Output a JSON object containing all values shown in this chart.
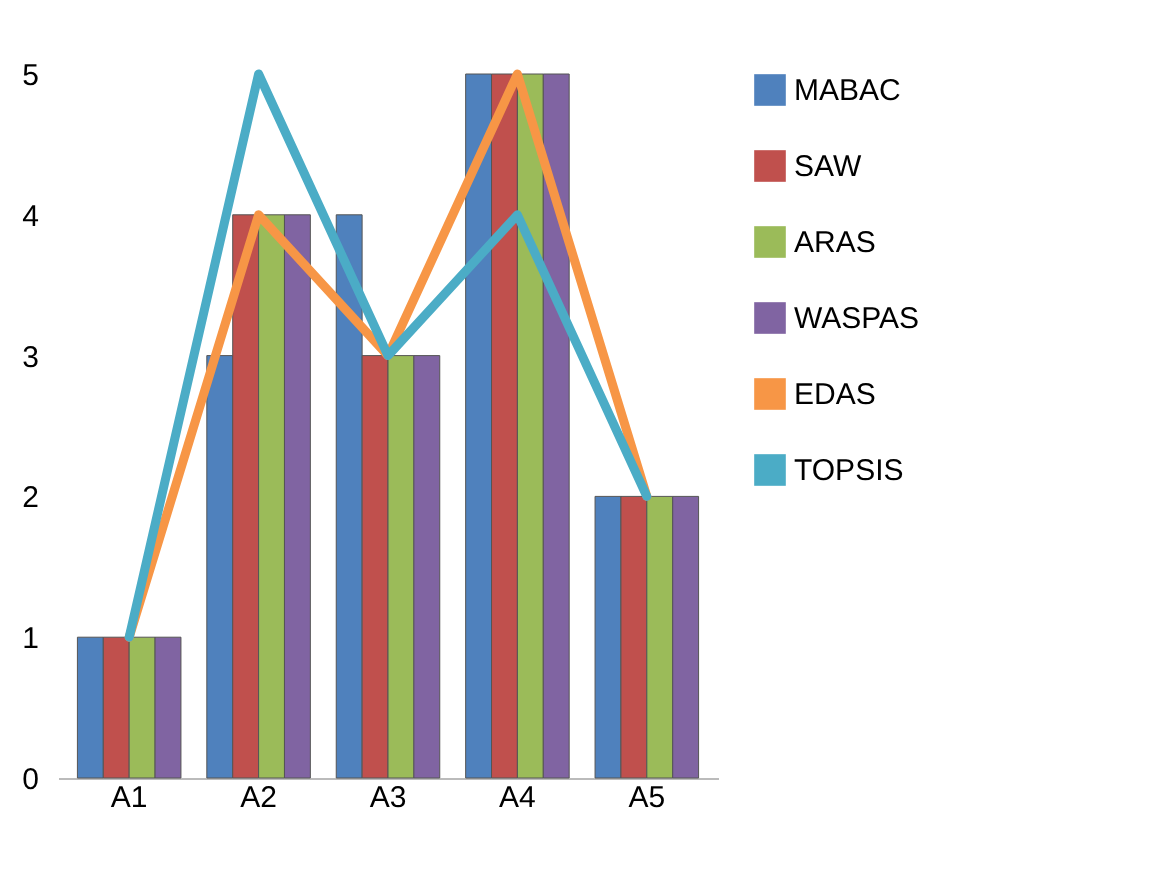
{
  "chart_data": {
    "type": "bar",
    "categories": [
      "A1",
      "A2",
      "A3",
      "A4",
      "A5"
    ],
    "series": [
      {
        "name": "MABAC",
        "color": "#4f81bd",
        "values": [
          1,
          3,
          4,
          5,
          2
        ]
      },
      {
        "name": "SAW",
        "color": "#c0504d",
        "values": [
          1,
          4,
          3,
          5,
          2
        ]
      },
      {
        "name": "ARAS",
        "color": "#9bbb59",
        "values": [
          1,
          4,
          3,
          5,
          2
        ]
      },
      {
        "name": "WASPAS",
        "color": "#8064a2",
        "values": [
          1,
          4,
          3,
          5,
          2
        ]
      },
      {
        "name": "EDAS",
        "type": "line",
        "color": "#f79646",
        "values": [
          1,
          4,
          3,
          5,
          2
        ]
      },
      {
        "name": "TOPSIS",
        "type": "line",
        "color": "#4bacc6",
        "values": [
          1,
          5,
          3,
          4,
          2
        ]
      }
    ],
    "ylim": [
      0,
      5
    ],
    "yticks": [
      0,
      1,
      2,
      3,
      4,
      5
    ],
    "legend": "right",
    "marker": "none",
    "line_style": "solid"
  }
}
